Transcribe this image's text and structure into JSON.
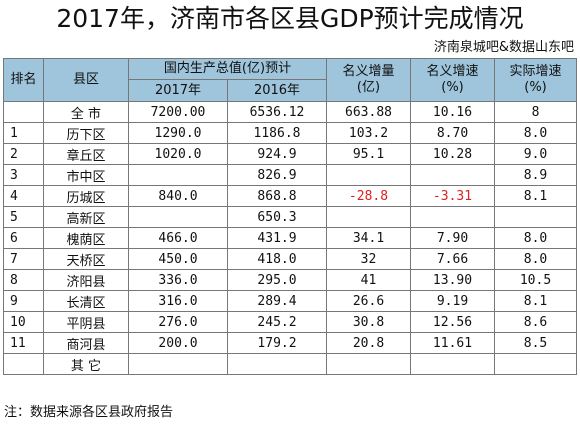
{
  "title": "2017年，济南市各区县GDP预计完成情况",
  "source": "济南泉城吧&数据山东吧",
  "headers": {
    "rank": "排名",
    "district": "县区",
    "gdp_group": "国内生产总值(亿)预计",
    "gdp_2017": "2017年",
    "gdp_2016": "2016年",
    "nominal_increase": "名义增量\n(亿)",
    "nominal_rate": "名义增速\n(%)",
    "real_rate": "实际增速\n(%)"
  },
  "total": {
    "label": "全  市",
    "gdp_2017": "7200.00",
    "gdp_2016": "6536.12",
    "nominal_increase": "663.88",
    "nominal_rate": "10.16",
    "real_rate": "8"
  },
  "rows": [
    {
      "rank": "1",
      "district": "历下区",
      "gdp_2017": "1290.0",
      "gdp_2016": "1186.8",
      "nominal_increase": "103.2",
      "nominal_rate": "8.70",
      "real_rate": "8.0"
    },
    {
      "rank": "2",
      "district": "章丘区",
      "gdp_2017": "1020.0",
      "gdp_2016": "924.9",
      "nominal_increase": "95.1",
      "nominal_rate": "10.28",
      "real_rate": "9.0"
    },
    {
      "rank": "3",
      "district": "市中区",
      "gdp_2017": "",
      "gdp_2016": "826.9",
      "nominal_increase": "",
      "nominal_rate": "",
      "real_rate": "8.9"
    },
    {
      "rank": "4",
      "district": "历城区",
      "gdp_2017": "840.0",
      "gdp_2016": "868.8",
      "nominal_increase": "-28.8",
      "nominal_rate": "-3.31",
      "real_rate": "8.1"
    },
    {
      "rank": "5",
      "district": "高新区",
      "gdp_2017": "",
      "gdp_2016": "650.3",
      "nominal_increase": "",
      "nominal_rate": "",
      "real_rate": ""
    },
    {
      "rank": "6",
      "district": "槐荫区",
      "gdp_2017": "466.0",
      "gdp_2016": "431.9",
      "nominal_increase": "34.1",
      "nominal_rate": "7.90",
      "real_rate": "8.0"
    },
    {
      "rank": "7",
      "district": "天桥区",
      "gdp_2017": "450.0",
      "gdp_2016": "418.0",
      "nominal_increase": "32",
      "nominal_rate": "7.66",
      "real_rate": "8.0"
    },
    {
      "rank": "8",
      "district": "济阳县",
      "gdp_2017": "336.0",
      "gdp_2016": "295.0",
      "nominal_increase": "41",
      "nominal_rate": "13.90",
      "real_rate": "10.5"
    },
    {
      "rank": "9",
      "district": "长清区",
      "gdp_2017": "316.0",
      "gdp_2016": "289.4",
      "nominal_increase": "26.6",
      "nominal_rate": "9.19",
      "real_rate": "8.1"
    },
    {
      "rank": "10",
      "district": "平阴县",
      "gdp_2017": "276.0",
      "gdp_2016": "245.2",
      "nominal_increase": "30.8",
      "nominal_rate": "12.56",
      "real_rate": "8.6"
    },
    {
      "rank": "11",
      "district": "商河县",
      "gdp_2017": "200.0",
      "gdp_2016": "179.2",
      "nominal_increase": "20.8",
      "nominal_rate": "11.61",
      "real_rate": "8.5"
    }
  ],
  "other": {
    "label": "其  它"
  },
  "note": "注：数据来源各区县政府报告",
  "colors": {
    "header_bg": "#9ec5db",
    "negative": "#e02020"
  }
}
